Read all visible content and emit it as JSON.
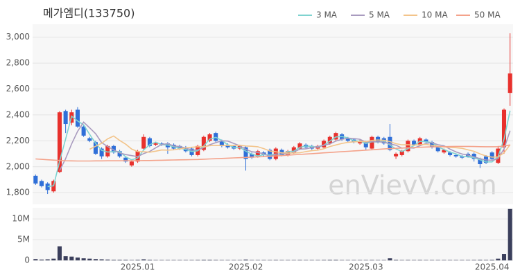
{
  "chart_data": {
    "type": "candlestick",
    "title": "메가엠디(133750)",
    "watermark": "enVievV.com",
    "legend": "top-right",
    "grid": true,
    "up_color": "#e8312d",
    "down_color": "#2f6fd8",
    "categories": [
      null,
      null,
      null,
      null,
      null,
      null,
      null,
      null,
      null,
      null,
      null,
      null,
      null,
      null,
      null,
      null,
      null,
      "2025.01",
      null,
      null,
      null,
      null,
      null,
      null,
      null,
      null,
      null,
      null,
      null,
      null,
      null,
      null,
      null,
      null,
      null,
      "2025.02",
      null,
      null,
      null,
      null,
      null,
      null,
      null,
      null,
      null,
      null,
      null,
      null,
      null,
      null,
      null,
      null,
      null,
      null,
      null,
      "2025.03",
      null,
      null,
      null,
      null,
      null,
      null,
      null,
      null,
      null,
      null,
      null,
      null,
      null,
      null,
      null,
      null,
      null,
      null,
      null,
      null,
      "2025.04",
      null,
      null,
      null
    ],
    "open": [
      1930,
      1890,
      1870,
      1810,
      1960,
      2430,
      2340,
      2440,
      2310,
      2220,
      2190,
      2140,
      2080,
      2160,
      2120,
      2070,
      2010,
      2040,
      2140,
      2220,
      2170,
      2180,
      2180,
      2170,
      2160,
      2150,
      2140,
      2090,
      2130,
      2200,
      2260,
      2200,
      2170,
      2160,
      2140,
      2150,
      2100,
      2080,
      2110,
      2130,
      2060,
      2130,
      2090,
      2110,
      2140,
      2170,
      2160,
      2140,
      2150,
      2180,
      2210,
      2250,
      2220,
      2210,
      2180,
      2190,
      2140,
      2230,
      2220,
      2230,
      2080,
      2090,
      2120,
      2200,
      2170,
      2210,
      2190,
      2150,
      2110,
      2110,
      2090,
      2080,
      2100,
      2100,
      2060,
      2080,
      2110,
      2030,
      2150,
      2570
    ],
    "high": [
      1940,
      1900,
      1880,
      1900,
      2430,
      2440,
      2440,
      2460,
      2320,
      2230,
      2200,
      2150,
      2170,
      2170,
      2130,
      2080,
      2050,
      2130,
      2250,
      2230,
      2190,
      2190,
      2190,
      2180,
      2170,
      2160,
      2150,
      2170,
      2240,
      2260,
      2270,
      2210,
      2180,
      2170,
      2170,
      2160,
      2110,
      2130,
      2120,
      2140,
      2150,
      2140,
      2130,
      2160,
      2190,
      2180,
      2170,
      2170,
      2210,
      2240,
      2270,
      2260,
      2230,
      2220,
      2210,
      2200,
      2240,
      2240,
      2230,
      2330,
      2110,
      2130,
      2210,
      2210,
      2230,
      2220,
      2200,
      2160,
      2140,
      2120,
      2100,
      2090,
      2110,
      2110,
      2070,
      2090,
      2120,
      2160,
      2450,
      3030
    ],
    "low": [
      1860,
      1840,
      1790,
      1800,
      1950,
      2260,
      2320,
      2300,
      2230,
      2190,
      2090,
      2060,
      2070,
      2100,
      2070,
      2030,
      2000,
      2030,
      2130,
      2150,
      2160,
      2160,
      2100,
      2130,
      2130,
      2110,
      2080,
      2080,
      2120,
      2190,
      2190,
      2150,
      2140,
      2130,
      2130,
      1970,
      2060,
      2070,
      2080,
      2050,
      2050,
      2080,
      2080,
      2100,
      2130,
      2140,
      2130,
      2130,
      2140,
      2170,
      2200,
      2200,
      2190,
      2180,
      2170,
      2130,
      2130,
      2180,
      2170,
      2120,
      2060,
      2080,
      2110,
      2160,
      2160,
      2180,
      2140,
      2110,
      2100,
      2080,
      2070,
      2060,
      2070,
      2040,
      1990,
      2020,
      2050,
      2020,
      2100,
      2470
    ],
    "close": [
      1870,
      1850,
      1820,
      1890,
      2420,
      2330,
      2420,
      2310,
      2240,
      2200,
      2100,
      2080,
      2160,
      2110,
      2080,
      2040,
      2040,
      2120,
      2230,
      2160,
      2180,
      2170,
      2150,
      2140,
      2140,
      2120,
      2090,
      2160,
      2230,
      2250,
      2200,
      2160,
      2150,
      2140,
      2160,
      2060,
      2070,
      2120,
      2090,
      2060,
      2140,
      2090,
      2120,
      2150,
      2180,
      2150,
      2140,
      2160,
      2200,
      2230,
      2260,
      2210,
      2200,
      2190,
      2200,
      2150,
      2230,
      2190,
      2180,
      2130,
      2100,
      2120,
      2200,
      2170,
      2220,
      2190,
      2150,
      2120,
      2130,
      2090,
      2080,
      2070,
      2080,
      2060,
      2020,
      2030,
      2060,
      2140,
      2440,
      2720
    ],
    "ylim": [
      1710,
      3100
    ],
    "yticks": [
      {
        "value": 1800,
        "label": "1,800"
      },
      {
        "value": 2000,
        "label": "2,000"
      },
      {
        "value": 2200,
        "label": "2,200"
      },
      {
        "value": 2400,
        "label": "2,400"
      },
      {
        "value": 2600,
        "label": "2,600"
      },
      {
        "value": 2800,
        "label": "2,800"
      },
      {
        "value": 3000,
        "label": "3,000"
      }
    ],
    "series": [
      {
        "name": "3 MA",
        "color": "#7fd3d0",
        "values": [
          null,
          null,
          1847,
          1853,
          2043,
          2213,
          2390,
          2353,
          2323,
          2250,
          2180,
          2127,
          2113,
          2117,
          2117,
          2077,
          2053,
          2067,
          2130,
          2170,
          2190,
          2170,
          2167,
          2153,
          2143,
          2133,
          2117,
          2123,
          2160,
          2213,
          2227,
          2203,
          2170,
          2150,
          2150,
          2120,
          2097,
          2083,
          2093,
          2090,
          2097,
          2097,
          2117,
          2120,
          2150,
          2160,
          2157,
          2150,
          2167,
          2197,
          2230,
          2233,
          2223,
          2200,
          2197,
          2180,
          2193,
          2190,
          2200,
          2167,
          2137,
          2117,
          2140,
          2163,
          2197,
          2193,
          2187,
          2153,
          2133,
          2113,
          2100,
          2080,
          2077,
          2070,
          2053,
          2037,
          2037,
          2077,
          2213,
          2433
        ]
      },
      {
        "name": "5 MA",
        "color": "#a99bbf",
        "values": [
          null,
          null,
          null,
          null,
          1970,
          2062,
          2176,
          2274,
          2344,
          2300,
          2254,
          2186,
          2156,
          2130,
          2106,
          2094,
          2086,
          2078,
          2102,
          2118,
          2146,
          2172,
          2178,
          2160,
          2156,
          2144,
          2128,
          2130,
          2148,
          2170,
          2186,
          2200,
          2198,
          2180,
          2162,
          2134,
          2116,
          2110,
          2100,
          2080,
          2096,
          2100,
          2100,
          2112,
          2136,
          2138,
          2148,
          2156,
          2166,
          2176,
          2198,
          2212,
          2220,
          2218,
          2212,
          2190,
          2194,
          2192,
          2190,
          2176,
          2166,
          2144,
          2146,
          2144,
          2162,
          2180,
          2186,
          2170,
          2162,
          2136,
          2114,
          2098,
          2090,
          2076,
          2062,
          2052,
          2050,
          2062,
          2138,
          2278
        ]
      },
      {
        "name": "10 MA",
        "color": "#f3c48a",
        "values": [
          null,
          null,
          null,
          null,
          null,
          null,
          null,
          null,
          null,
          2135,
          2158,
          2181,
          2215,
          2237,
          2203,
          2174,
          2136,
          2117,
          2116,
          2112,
          2120,
          2129,
          2128,
          2131,
          2137,
          2145,
          2150,
          2154,
          2154,
          2163,
          2165,
          2164,
          2164,
          2164,
          2166,
          2160,
          2158,
          2154,
          2140,
          2121,
          2115,
          2108,
          2105,
          2106,
          2108,
          2117,
          2124,
          2128,
          2139,
          2156,
          2168,
          2180,
          2188,
          2192,
          2194,
          2194,
          2203,
          2206,
          2204,
          2194,
          2178,
          2169,
          2169,
          2167,
          2169,
          2173,
          2165,
          2158,
          2153,
          2149,
          2147,
          2142,
          2130,
          2119,
          2099,
          2083,
          2074,
          2076,
          2107,
          2170
        ]
      },
      {
        "name": "50 MA",
        "color": "#f4a28a",
        "values": [
          2060,
          2057,
          2054,
          2051,
          2048,
          2046,
          2045,
          2044,
          2044,
          2044,
          2045,
          2045,
          2046,
          2046,
          2046,
          2047,
          2047,
          2047,
          2048,
          2048,
          2049,
          2050,
          2051,
          2052,
          2053,
          2054,
          2055,
          2056,
          2058,
          2060,
          2062,
          2064,
          2066,
          2068,
          2070,
          2072,
          2074,
          2076,
          2078,
          2080,
          2083,
          2086,
          2089,
          2092,
          2095,
          2098,
          2101,
          2104,
          2107,
          2110,
          2113,
          2116,
          2119,
          2122,
          2125,
          2128,
          2131,
          2134,
          2137,
          2140,
          2142,
          2144,
          2146,
          2148,
          2150,
          2152,
          2153,
          2154,
          2155,
          2156,
          2157,
          2157,
          2157,
          2156,
          2155,
          2154,
          2154,
          2155,
          2160,
          2168
        ]
      }
    ],
    "volume": {
      "color": "#3b3f5c",
      "ylim": [
        0,
        12700000
      ],
      "yticks": [
        0,
        {
          "value": 5000000,
          "label": "5M"
        },
        {
          "value": 10000000,
          "label": "10M"
        }
      ],
      "values": [
        300000,
        200000,
        250000,
        400000,
        3400000,
        1000000,
        900000,
        700000,
        500000,
        400000,
        300000,
        250000,
        200000,
        150000,
        150000,
        150000,
        100000,
        150000,
        250000,
        150000,
        100000,
        100000,
        100000,
        100000,
        100000,
        100000,
        100000,
        120000,
        150000,
        150000,
        120000,
        100000,
        100000,
        100000,
        100000,
        200000,
        100000,
        100000,
        100000,
        100000,
        120000,
        100000,
        100000,
        100000,
        120000,
        100000,
        100000,
        100000,
        120000,
        150000,
        150000,
        100000,
        100000,
        100000,
        100000,
        100000,
        120000,
        100000,
        100000,
        500000,
        150000,
        100000,
        120000,
        100000,
        120000,
        100000,
        100000,
        100000,
        100000,
        100000,
        100000,
        100000,
        100000,
        120000,
        150000,
        120000,
        150000,
        400000,
        1500000,
        12400000
      ]
    }
  }
}
